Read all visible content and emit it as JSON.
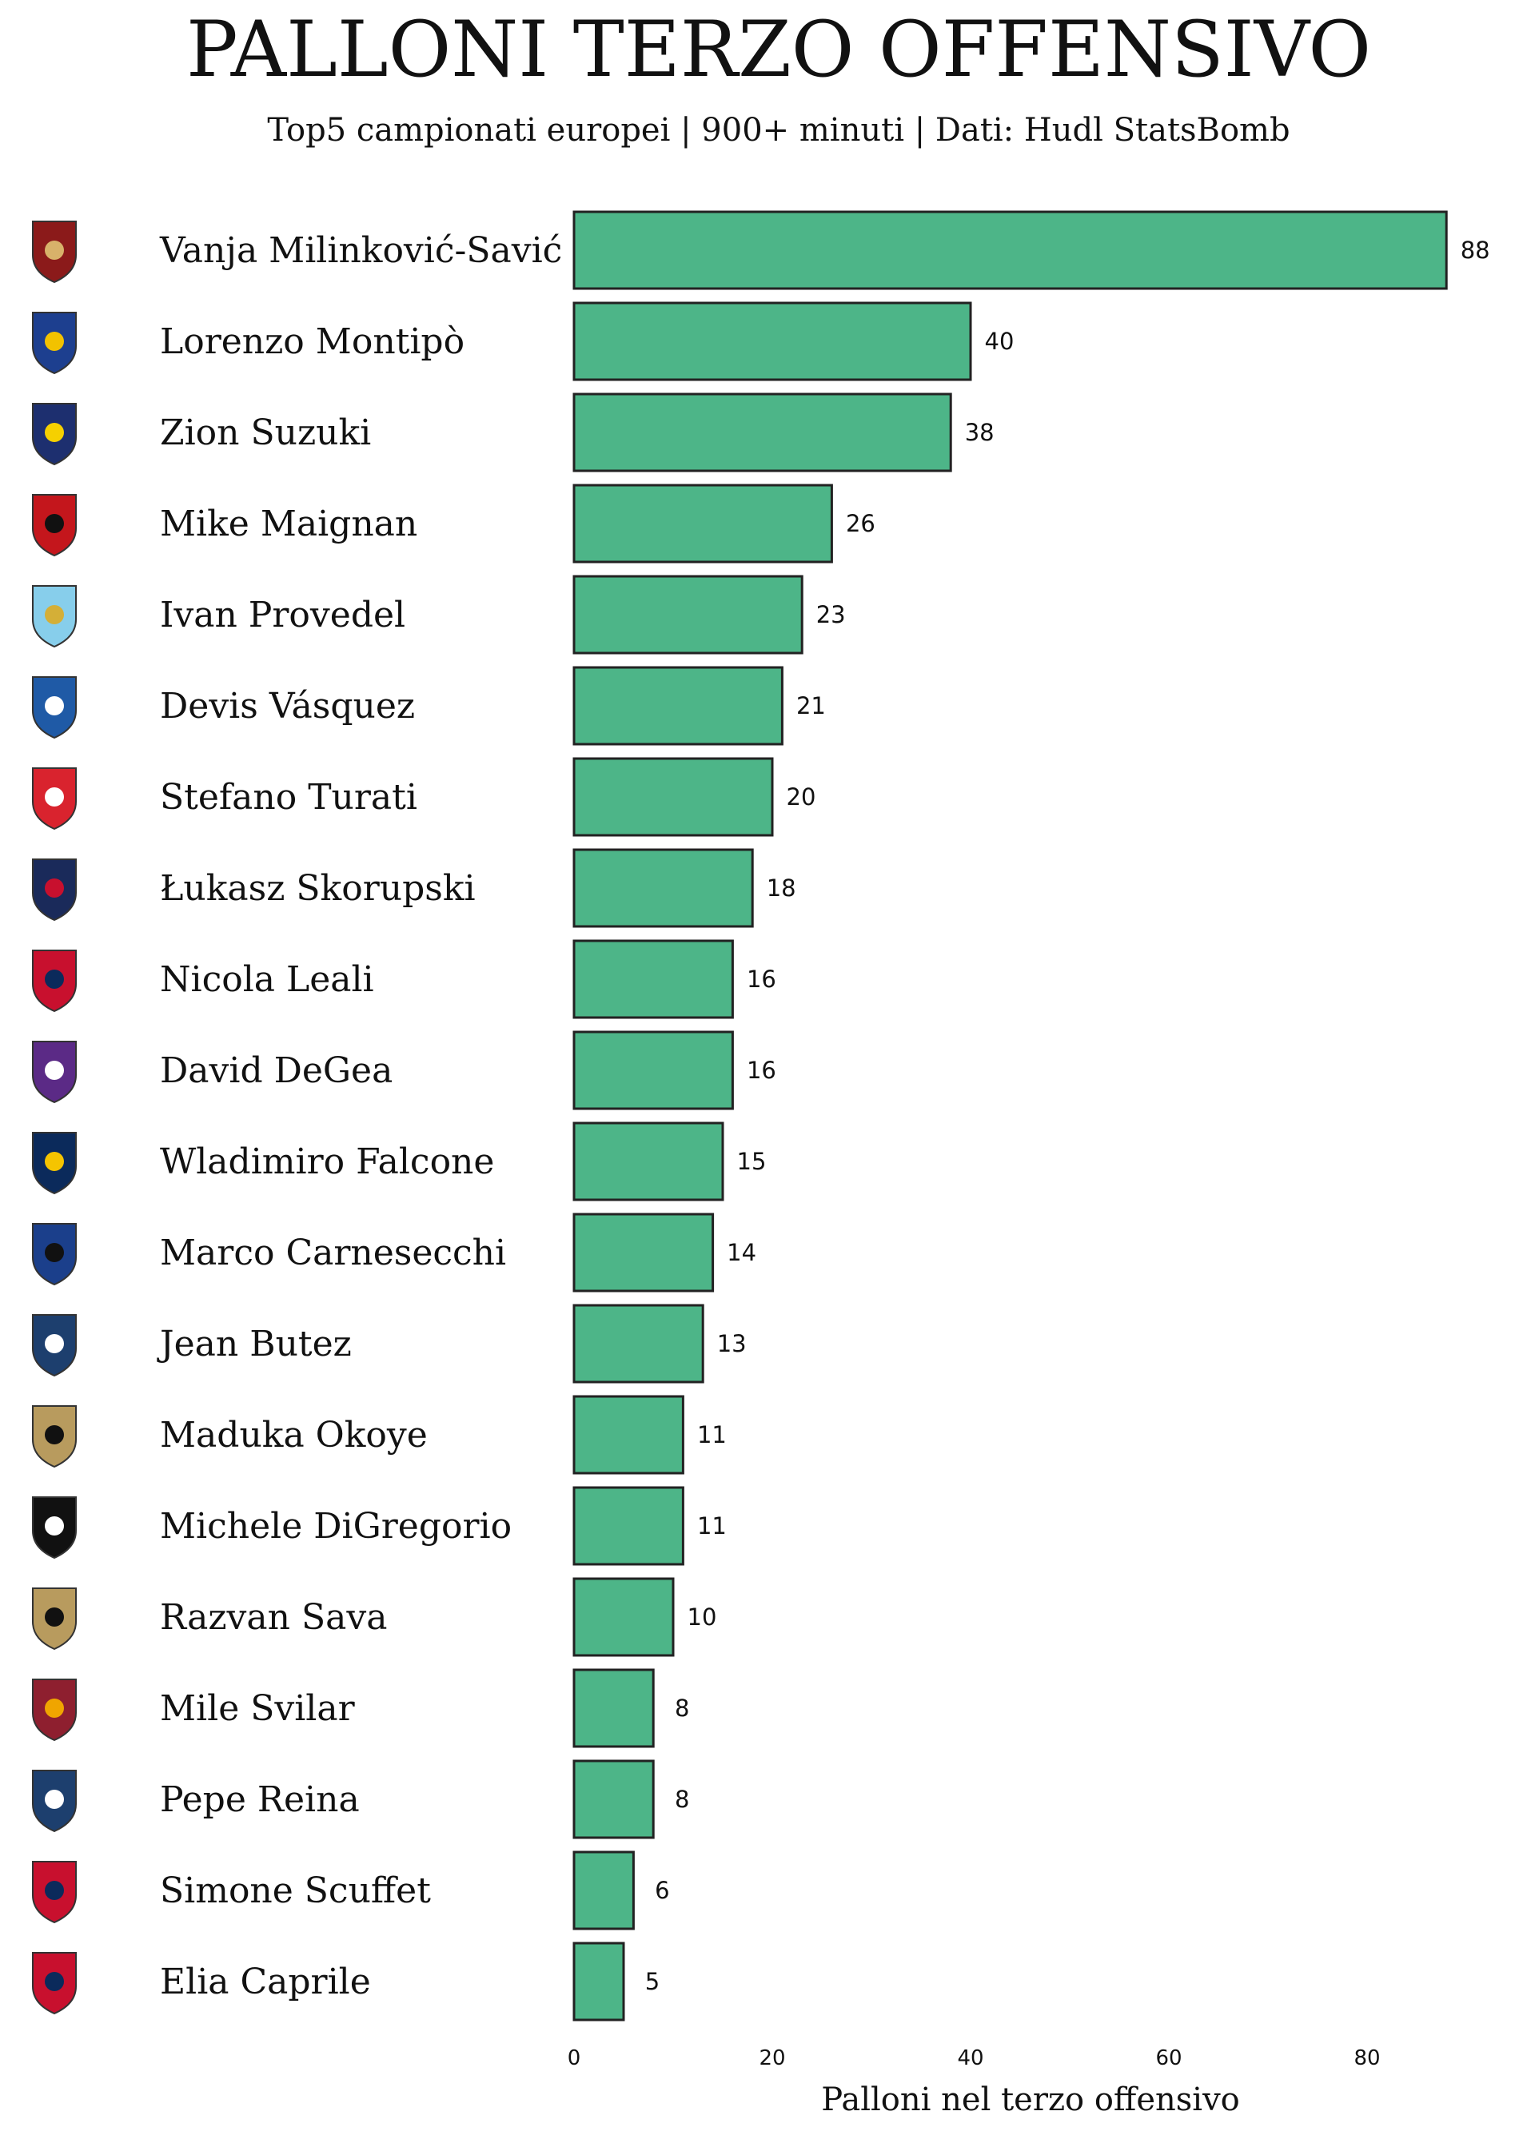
{
  "chart_data": {
    "type": "bar",
    "orientation": "horizontal",
    "title": "PALLONI TERZO OFFENSIVO",
    "subtitle": "Top5 campionati europei | 900+ minuti | Dati: Hudl StatsBomb",
    "xlabel": "Palloni nel terzo offensivo",
    "ylabel": "",
    "xlim": [
      0,
      90
    ],
    "xticks": [
      0,
      20,
      40,
      60,
      80
    ],
    "grid": false,
    "bar_color": "#4db588",
    "bar_edge_color": "#222222",
    "categories": [
      "Vanja Milinković-Savić",
      "Lorenzo Montipò",
      "Zion Suzuki",
      "Mike Maignan",
      "Ivan Provedel",
      "Devis Vásquez",
      "Stefano Turati",
      "Łukasz Skorupski",
      "Nicola Leali",
      "David DeGea",
      "Wladimiro Falcone",
      "Marco Carnesecchi",
      "Jean Butez",
      "Maduka Okoye",
      "Michele DiGregorio",
      "Razvan Sava",
      "Mile Svilar",
      "Pepe Reina",
      "Simone Scuffet",
      "Elia Caprile"
    ],
    "values": [
      88,
      40,
      38,
      26,
      23,
      21,
      20,
      18,
      16,
      16,
      15,
      14,
      13,
      11,
      11,
      10,
      8,
      8,
      6,
      5
    ],
    "team_logos": [
      "torino-logo-icon",
      "verona-logo-icon",
      "parma-logo-icon",
      "milan-logo-icon",
      "lazio-logo-icon",
      "empoli-logo-icon",
      "monza-logo-icon",
      "bologna-logo-icon",
      "genoa-logo-icon",
      "fiorentina-logo-icon",
      "lecce-logo-icon",
      "atalanta-logo-icon",
      "como-logo-icon",
      "udinese-logo-icon",
      "juventus-logo-icon",
      "udinese-logo-icon",
      "roma-logo-icon",
      "como-logo-icon",
      "cagliari-logo-icon",
      "cagliari-logo-icon"
    ],
    "logo_colors": [
      [
        "#8b1a1a",
        "#d8b26a"
      ],
      [
        "#1d3f8f",
        "#f2c200"
      ],
      [
        "#1d2f6f",
        "#f5d000"
      ],
      [
        "#c4161c",
        "#111111"
      ],
      [
        "#87ceeb",
        "#d4af37"
      ],
      [
        "#1f5aa6",
        "#ffffff"
      ],
      [
        "#d9232e",
        "#ffffff"
      ],
      [
        "#1a2a5a",
        "#c8102e"
      ],
      [
        "#c8102e",
        "#0b2a5b"
      ],
      [
        "#5b2a86",
        "#ffffff"
      ],
      [
        "#0b2a5b",
        "#f5c400"
      ],
      [
        "#1b3f8b",
        "#111111"
      ],
      [
        "#1d3f6e",
        "#ffffff"
      ],
      [
        "#b89b5e",
        "#111111"
      ],
      [
        "#111111",
        "#ffffff"
      ],
      [
        "#b89b5e",
        "#111111"
      ],
      [
        "#8e1f2f",
        "#f0a500"
      ],
      [
        "#1d3f6e",
        "#ffffff"
      ],
      [
        "#c8102e",
        "#0b2a5b"
      ],
      [
        "#c8102e",
        "#0b2a5b"
      ]
    ]
  }
}
